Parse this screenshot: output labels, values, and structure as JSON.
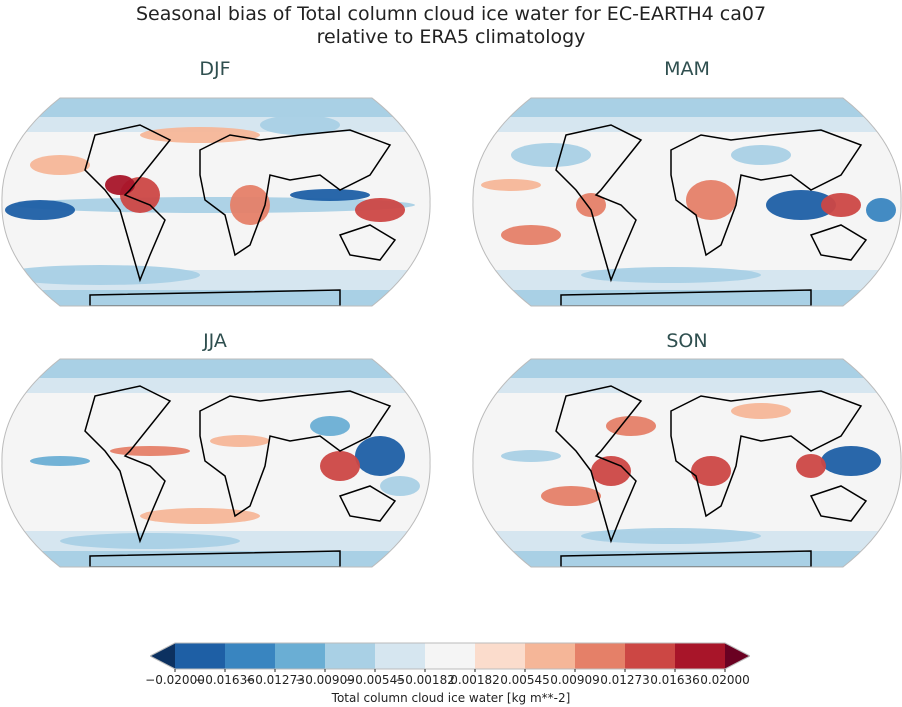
{
  "title_line1": "Seasonal bias of Total column cloud ice water for EC-EARTH4 ca07",
  "title_line2": "relative to ERA5 climatology",
  "panels": [
    {
      "label": "DJF"
    },
    {
      "label": "MAM"
    },
    {
      "label": "JJA"
    },
    {
      "label": "SON"
    }
  ],
  "colorbar": {
    "label": "Total column cloud ice water [kg m**-2]",
    "ticks": [
      "−0.02000",
      "−0.01636",
      "−0.01273",
      "−0.00909",
      "−0.00545",
      "−0.00182",
      "0.00182",
      "0.00545",
      "0.00909",
      "0.01273",
      "0.01636",
      "0.02000"
    ],
    "colors": [
      "#1e5fa5",
      "#3985c0",
      "#6aaed4",
      "#a9d0e5",
      "#d6e6f0",
      "#f5f5f5",
      "#fbdccc",
      "#f5b698",
      "#e58068",
      "#cc4744",
      "#a81529"
    ],
    "extend_low_color": "#0c3160",
    "extend_high_color": "#6a0122",
    "range": [
      -0.02,
      0.02
    ],
    "colormap": "RdBu_r",
    "extend": "both"
  },
  "projection": "Robinson"
}
